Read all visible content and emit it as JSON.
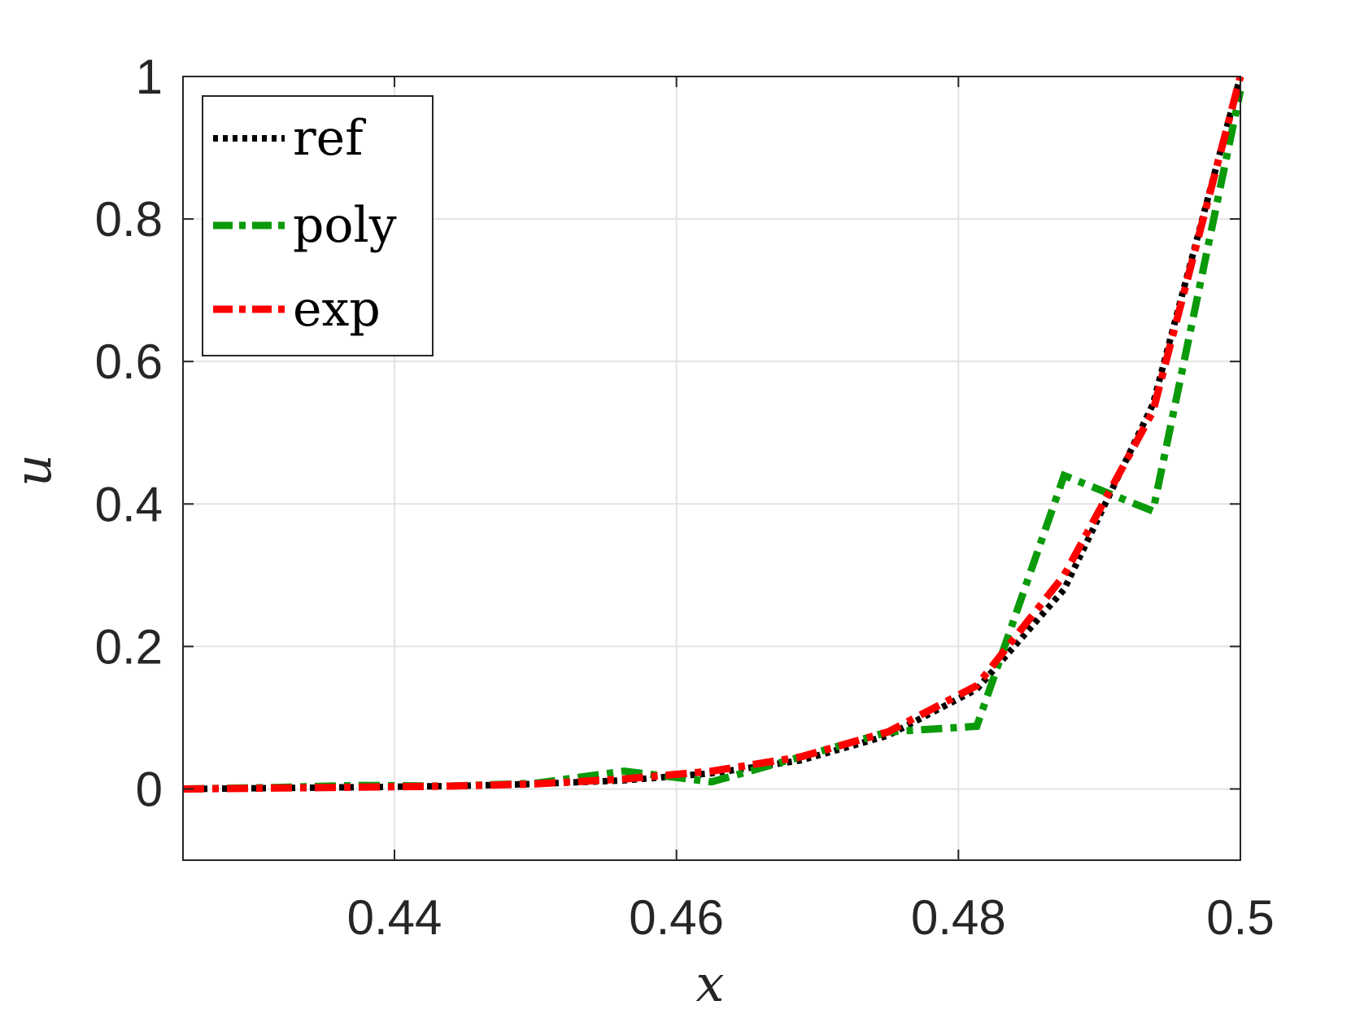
{
  "chart_data": {
    "type": "line",
    "title": "",
    "xlabel": "x",
    "ylabel": "u",
    "xlim": [
      0.425,
      0.5
    ],
    "ylim": [
      -0.1,
      1.0
    ],
    "x_ticks": [
      0.44,
      0.46,
      0.48,
      0.5
    ],
    "x_tick_labels": [
      "0.44",
      "0.46",
      "0.48",
      "0.5"
    ],
    "y_ticks": [
      0,
      0.2,
      0.4,
      0.6,
      0.8,
      1
    ],
    "y_tick_labels": [
      "0",
      "0.2",
      "0.4",
      "0.6",
      "0.8",
      "1"
    ],
    "grid": true,
    "legend_position": "top-left",
    "series": [
      {
        "name": "ref",
        "color": "#000000",
        "dash": "dotted",
        "x": [
          0.425,
          0.4313,
          0.4375,
          0.4438,
          0.45,
          0.4563,
          0.4625,
          0.4688,
          0.475,
          0.4813,
          0.4875,
          0.4938,
          0.5
        ],
        "y": [
          0.0,
          0.0012,
          0.0025,
          0.004,
          0.007,
          0.012,
          0.022,
          0.04,
          0.075,
          0.14,
          0.28,
          0.54,
          1.0
        ]
      },
      {
        "name": "poly",
        "color": "#0a9a0a",
        "dash": "dashdot",
        "x": [
          0.425,
          0.4313,
          0.4375,
          0.4438,
          0.45,
          0.4563,
          0.4625,
          0.4688,
          0.475,
          0.4813,
          0.4875,
          0.4938,
          0.5
        ],
        "y": [
          0.0,
          0.002,
          0.005,
          0.004,
          0.008,
          0.025,
          0.01,
          0.045,
          0.08,
          0.088,
          0.44,
          0.39,
          0.98
        ]
      },
      {
        "name": "exp",
        "color": "#ff0000",
        "dash": "dashdot",
        "x": [
          0.425,
          0.4313,
          0.4375,
          0.4438,
          0.45,
          0.4563,
          0.4625,
          0.4688,
          0.475,
          0.4813,
          0.4875,
          0.4938,
          0.5
        ],
        "y": [
          0.0,
          0.0012,
          0.0025,
          0.004,
          0.007,
          0.014,
          0.025,
          0.045,
          0.08,
          0.145,
          0.3,
          0.53,
          1.0
        ]
      }
    ]
  }
}
